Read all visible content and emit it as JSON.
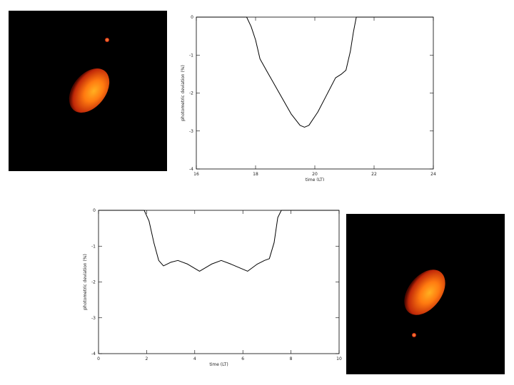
{
  "panels": [
    {
      "name": "top-simulation-image",
      "bg": "#000000",
      "ellipse_color": "#ff7a10",
      "dot_color": "#ff4a18"
    },
    {
      "name": "bottom-simulation-image",
      "bg": "#000000",
      "ellipse_color": "#ff7a10",
      "dot_color": "#ff4a18"
    }
  ],
  "chart_data": [
    {
      "type": "line",
      "xlabel": "time (LT)",
      "ylabel": "photometric deviation (%)",
      "xlim": [
        16,
        24
      ],
      "ylim": [
        -4,
        0
      ],
      "xticks": [
        "16",
        "18",
        "20",
        "22",
        "24"
      ],
      "yticks": [
        "0",
        "-1",
        "-2",
        "-3",
        "-4"
      ],
      "series": [
        {
          "x": [
            16,
            17.0,
            17.7,
            17.85,
            18.0,
            18.15,
            18.4,
            18.8,
            19.2,
            19.5,
            19.65,
            19.8,
            20.1,
            20.4,
            20.7,
            20.9,
            21.05,
            21.2,
            21.3,
            21.4,
            22.0,
            24
          ],
          "y": [
            0,
            0,
            0,
            -0.25,
            -0.6,
            -1.1,
            -1.45,
            -2.0,
            -2.55,
            -2.85,
            -2.9,
            -2.85,
            -2.5,
            -2.05,
            -1.6,
            -1.5,
            -1.4,
            -0.9,
            -0.4,
            0,
            0,
            0
          ]
        }
      ]
    },
    {
      "type": "line",
      "xlabel": "time (LT)",
      "ylabel": "photometric deviation (%)",
      "xlim": [
        0,
        10
      ],
      "ylim": [
        -4,
        0
      ],
      "xticks": [
        "0",
        "2",
        "4",
        "6",
        "8",
        "10"
      ],
      "yticks": [
        "0",
        "-1",
        "-2",
        "-3",
        "-4"
      ],
      "series": [
        {
          "x": [
            0,
            1.9,
            2.1,
            2.3,
            2.5,
            2.7,
            3.0,
            3.3,
            3.7,
            4.2,
            4.7,
            5.1,
            5.5,
            6.2,
            6.6,
            6.9,
            7.1,
            7.3,
            7.45,
            7.6,
            10
          ],
          "y": [
            0,
            0,
            -0.3,
            -0.9,
            -1.4,
            -1.55,
            -1.45,
            -1.4,
            -1.5,
            -1.7,
            -1.5,
            -1.4,
            -1.5,
            -1.7,
            -1.5,
            -1.4,
            -1.35,
            -0.9,
            -0.2,
            0,
            0
          ]
        }
      ]
    }
  ]
}
